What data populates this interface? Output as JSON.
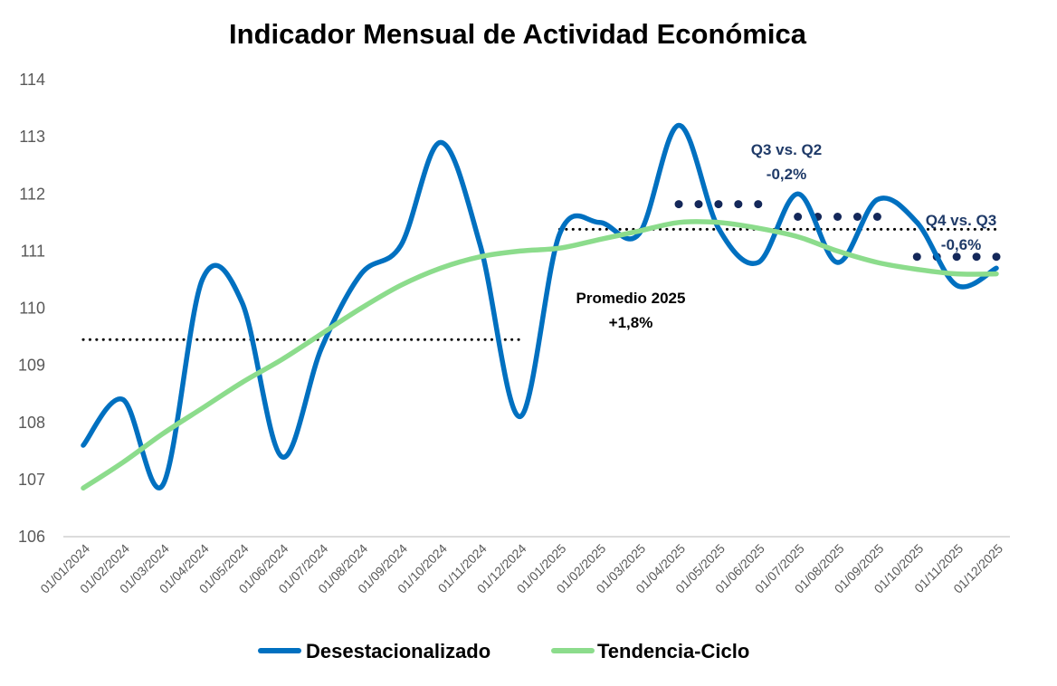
{
  "chart_data": {
    "type": "line",
    "title": "Indicador Mensual de Actividad Económica",
    "xlabel": "",
    "ylabel": "",
    "ylim": [
      106,
      114
    ],
    "yticks": [
      "106",
      "107",
      "108",
      "109",
      "110",
      "111",
      "112",
      "113",
      "114"
    ],
    "grid": false,
    "legend_position": "bottom",
    "categories": [
      "01/01/2024",
      "01/02/2024",
      "01/03/2024",
      "01/04/2024",
      "01/05/2024",
      "01/06/2024",
      "01/07/2024",
      "01/08/2024",
      "01/09/2024",
      "01/10/2024",
      "01/11/2024",
      "01/12/2024",
      "01/01/2025",
      "01/02/2025",
      "01/03/2025",
      "01/04/2025",
      "01/05/2025",
      "01/06/2025",
      "01/07/2025",
      "01/08/2025",
      "01/09/2025",
      "01/10/2025",
      "01/11/2025",
      "01/12/2025"
    ],
    "series": [
      {
        "name": "Desestacionalizado",
        "color": "#0070c0",
        "values": [
          107.6,
          108.4,
          106.9,
          110.5,
          110.1,
          107.4,
          109.3,
          110.6,
          111.1,
          112.9,
          111.1,
          108.1,
          111.3,
          111.5,
          111.3,
          113.2,
          111.4,
          110.8,
          112.0,
          110.8,
          111.9,
          111.5,
          110.4,
          110.7
        ]
      },
      {
        "name": "Tendencia-Ciclo",
        "color": "#8cdc8c",
        "values": [
          106.85,
          107.3,
          107.8,
          108.25,
          108.7,
          109.1,
          109.55,
          110.0,
          110.4,
          110.7,
          110.9,
          111.0,
          111.05,
          111.2,
          111.35,
          111.5,
          111.5,
          111.4,
          111.25,
          111.0,
          110.8,
          110.68,
          110.6,
          110.6
        ]
      }
    ],
    "reference_lines": [
      {
        "name": "Promedio 2024",
        "style": "dotted",
        "color": "#000000",
        "value": 109.45,
        "from": "01/01/2024",
        "to": "01/12/2024"
      },
      {
        "name": "Promedio 2025",
        "style": "dotted",
        "color": "#000000",
        "value": 111.38,
        "from": "01/01/2025",
        "to": "01/12/2025"
      },
      {
        "name": "Promedio Q2 2025",
        "style": "dots",
        "color": "#14285a",
        "value": 111.82,
        "from": "01/04/2025",
        "to": "01/06/2025"
      },
      {
        "name": "Promedio Q3 2025",
        "style": "dots",
        "color": "#14285a",
        "value": 111.6,
        "from": "01/07/2025",
        "to": "01/09/2025"
      },
      {
        "name": "Promedio Q4 2025",
        "style": "dots",
        "color": "#14285a",
        "value": 110.9,
        "from": "01/10/2025",
        "to": "01/12/2025"
      }
    ],
    "annotations": [
      {
        "id": "promedio",
        "lines": [
          "Promedio 2025",
          "+1,8%"
        ]
      },
      {
        "id": "q3q2",
        "lines": [
          "Q3 vs. Q2",
          "-0,2%"
        ]
      },
      {
        "id": "q4q3",
        "lines": [
          "Q4 vs. Q3",
          "-0,6%"
        ]
      }
    ]
  }
}
